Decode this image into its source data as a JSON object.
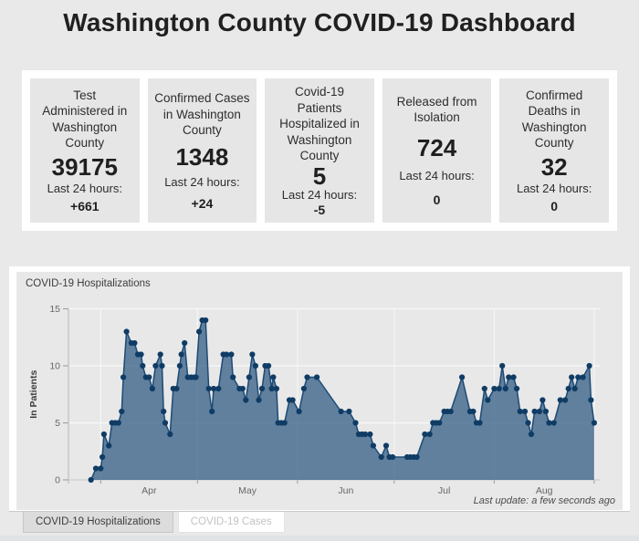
{
  "page_title": "Washington County COVID-19 Dashboard",
  "stats": {
    "cards": [
      {
        "title": "Test Administered in Washington County",
        "value": "39175",
        "period_label": "Last 24 hours:",
        "change": "+661"
      },
      {
        "title": "Confirmed Cases in Washington County",
        "value": "1348",
        "period_label": "Last 24 hours:",
        "change": "+24"
      },
      {
        "title": "Covid-19 Patients Hospitalized in Washington County",
        "value": "5",
        "period_label": "Last 24 hours:",
        "change": "-5"
      },
      {
        "title": "Released from Isolation",
        "value": "724",
        "period_label": "Last 24 hours:",
        "change": "0"
      },
      {
        "title": "Confirmed Deaths in Washington County",
        "value": "32",
        "period_label": "Last 24 hours:",
        "change": "0"
      }
    ]
  },
  "chart_data": {
    "type": "area",
    "title": "COVID-19 Hospitalizations",
    "xlabel": "",
    "ylabel": "In Patients",
    "ylim": [
      0,
      15
    ],
    "yticks": [
      0,
      5,
      10,
      15
    ],
    "grid": true,
    "legend": false,
    "last_update": "Last update: a few seconds ago",
    "x_unit": "day offset, daily points from late March to early September",
    "x_domain": [
      -7,
      158
    ],
    "month_ticks": [
      {
        "label": "Apr",
        "start": 3,
        "mid": 18
      },
      {
        "label": "May",
        "start": 33,
        "mid": 48.5
      },
      {
        "label": "Jun",
        "start": 64,
        "mid": 79
      },
      {
        "label": "Jul",
        "start": 94,
        "mid": 109.5
      },
      {
        "label": "Aug",
        "start": 125,
        "mid": 140.5
      }
    ],
    "right_boundary_day": 156,
    "points": [
      [
        0,
        0
      ],
      [
        1.5,
        1
      ],
      [
        3,
        1
      ],
      [
        3.5,
        2
      ],
      [
        4,
        4
      ],
      [
        5.5,
        3
      ],
      [
        6.5,
        5
      ],
      [
        7.5,
        5
      ],
      [
        8.5,
        5
      ],
      [
        9.5,
        6
      ],
      [
        10,
        9
      ],
      [
        11,
        13
      ],
      [
        12.5,
        12
      ],
      [
        13.5,
        12
      ],
      [
        14.5,
        11
      ],
      [
        15.5,
        11
      ],
      [
        16,
        10
      ],
      [
        17,
        9
      ],
      [
        18,
        9
      ],
      [
        19,
        8
      ],
      [
        20,
        10
      ],
      [
        21.5,
        11
      ],
      [
        22,
        10
      ],
      [
        22.5,
        6
      ],
      [
        23,
        5
      ],
      [
        24.5,
        4
      ],
      [
        25.5,
        8
      ],
      [
        26.5,
        8
      ],
      [
        27.5,
        10
      ],
      [
        28,
        11
      ],
      [
        29,
        12
      ],
      [
        30,
        9
      ],
      [
        31,
        9
      ],
      [
        32,
        9
      ],
      [
        32.5,
        9
      ],
      [
        33.5,
        13
      ],
      [
        34.5,
        14
      ],
      [
        35.5,
        14
      ],
      [
        36.5,
        8
      ],
      [
        37.5,
        6
      ],
      [
        38,
        8
      ],
      [
        39.5,
        8
      ],
      [
        41,
        11
      ],
      [
        42,
        11
      ],
      [
        43.5,
        11
      ],
      [
        44,
        9
      ],
      [
        46,
        8
      ],
      [
        47,
        8
      ],
      [
        48,
        7
      ],
      [
        49,
        9
      ],
      [
        50,
        11
      ],
      [
        51,
        10
      ],
      [
        52,
        7
      ],
      [
        53,
        8
      ],
      [
        54,
        10
      ],
      [
        55,
        10
      ],
      [
        56,
        8
      ],
      [
        56.5,
        9
      ],
      [
        57.5,
        8
      ],
      [
        58,
        5
      ],
      [
        59,
        5
      ],
      [
        60,
        5
      ],
      [
        61.5,
        7
      ],
      [
        62.5,
        7
      ],
      [
        64.5,
        6
      ],
      [
        66,
        8
      ],
      [
        67,
        9
      ],
      [
        70,
        9
      ],
      [
        77.5,
        6
      ],
      [
        80,
        6
      ],
      [
        82,
        5
      ],
      [
        83,
        4
      ],
      [
        84,
        4
      ],
      [
        85,
        4
      ],
      [
        86.5,
        4
      ],
      [
        87.5,
        3
      ],
      [
        90,
        2
      ],
      [
        91.5,
        3
      ],
      [
        92.5,
        2
      ],
      [
        93.5,
        2
      ],
      [
        98,
        2
      ],
      [
        99,
        2
      ],
      [
        100,
        2
      ],
      [
        101,
        2
      ],
      [
        103.5,
        4
      ],
      [
        105,
        4
      ],
      [
        106,
        5
      ],
      [
        107,
        5
      ],
      [
        108,
        5
      ],
      [
        109.5,
        6
      ],
      [
        110.5,
        6
      ],
      [
        111.5,
        6
      ],
      [
        115,
        9
      ],
      [
        117.5,
        6
      ],
      [
        118.5,
        6
      ],
      [
        119.5,
        5
      ],
      [
        120.5,
        5
      ],
      [
        122,
        8
      ],
      [
        123,
        7
      ],
      [
        125,
        8
      ],
      [
        126.5,
        8
      ],
      [
        127.5,
        10
      ],
      [
        128.5,
        8
      ],
      [
        129.5,
        9
      ],
      [
        131,
        9
      ],
      [
        132,
        8
      ],
      [
        133,
        6
      ],
      [
        134.5,
        6
      ],
      [
        135.5,
        5
      ],
      [
        136.5,
        4
      ],
      [
        137.5,
        6
      ],
      [
        139,
        6
      ],
      [
        140,
        7
      ],
      [
        141,
        6
      ],
      [
        142,
        5
      ],
      [
        143.5,
        5
      ],
      [
        145.5,
        7
      ],
      [
        147,
        7
      ],
      [
        148,
        8
      ],
      [
        149,
        9
      ],
      [
        150,
        8
      ],
      [
        151,
        9
      ],
      [
        152.5,
        9
      ],
      [
        154.5,
        10
      ],
      [
        155,
        7
      ],
      [
        156,
        5
      ]
    ],
    "colors": {
      "line": "#1d4a75",
      "marker": "#0f3c65",
      "fill": "rgba(31,78,121,0.68)",
      "grid": "#f6f6f6",
      "axis": "#b3b3b3",
      "baseline": "#c9c9c9",
      "tick_mark": "#9a9a9a"
    }
  },
  "tabs": [
    {
      "label": "COVID-19 Hospitalizations",
      "active": true
    },
    {
      "label": "COVID-19 Cases",
      "active": false
    }
  ]
}
